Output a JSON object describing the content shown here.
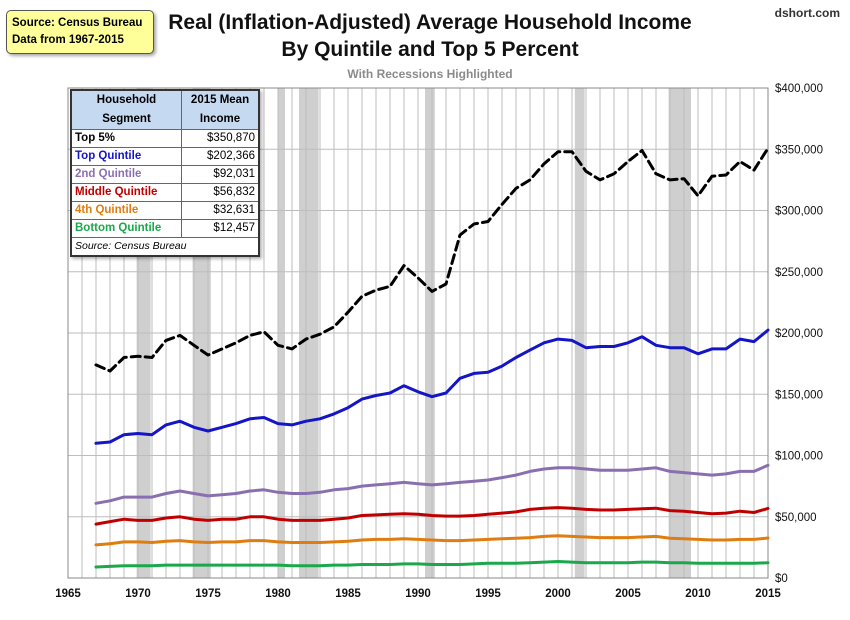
{
  "source_box": {
    "line1": "Source: Census Bureau",
    "line2": "Data from 1967-2015"
  },
  "brand": "dshort.com",
  "table": {
    "header_segment": [
      "Household",
      "Segment"
    ],
    "header_income": [
      "2015 Mean",
      "Income"
    ],
    "rows": [
      {
        "label": "Top 5%",
        "value": "$350,870",
        "color": "#000000"
      },
      {
        "label": "Top Quintile",
        "value": "$202,366",
        "color": "#1515c8"
      },
      {
        "label": "2nd Quintile",
        "value": "$92,031",
        "color": "#8a6fb0"
      },
      {
        "label": "Middle Quintile",
        "value": "$56,832",
        "color": "#c00000"
      },
      {
        "label": "4th Quintile",
        "value": "$32,631",
        "color": "#e07d10"
      },
      {
        "label": "Bottom Quintile",
        "value": "$12,457",
        "color": "#1aa84a"
      }
    ],
    "note": "Source: Census Bureau"
  },
  "chart_data": {
    "type": "line",
    "title": "Real (Inflation-Adjusted) Average Household Income",
    "title_line2": "By Quintile and Top 5 Percent",
    "subtitle": "With Recessions Highlighted",
    "xlim": [
      1965,
      2015
    ],
    "ylim": [
      0,
      400000
    ],
    "x_ticks": [
      1965,
      1970,
      1975,
      1980,
      1985,
      1990,
      1995,
      2000,
      2005,
      2010,
      2015
    ],
    "y_ticks": [
      0,
      50000,
      100000,
      150000,
      200000,
      250000,
      300000,
      350000,
      400000
    ],
    "y_tick_labels": [
      "$0",
      "$50,000",
      "$100,000",
      "$150,000",
      "$200,000",
      "$250,000",
      "$300,000",
      "$350,000",
      "$400,000"
    ],
    "grid": true,
    "recessions": [
      [
        1969.9,
        1970.9
      ],
      [
        1973.9,
        1975.2
      ],
      [
        1980.0,
        1980.5
      ],
      [
        1981.5,
        1982.9
      ],
      [
        1990.5,
        1991.2
      ],
      [
        2001.2,
        2001.9
      ],
      [
        2007.9,
        2009.5
      ]
    ],
    "x": [
      1967,
      1968,
      1969,
      1970,
      1971,
      1972,
      1973,
      1974,
      1975,
      1976,
      1977,
      1978,
      1979,
      1980,
      1981,
      1982,
      1983,
      1984,
      1985,
      1986,
      1987,
      1988,
      1989,
      1990,
      1991,
      1992,
      1993,
      1994,
      1995,
      1996,
      1997,
      1998,
      1999,
      2000,
      2001,
      2002,
      2003,
      2004,
      2005,
      2006,
      2007,
      2008,
      2009,
      2010,
      2011,
      2012,
      2013,
      2014,
      2015
    ],
    "series": [
      {
        "name": "Top 5%",
        "color": "#000000",
        "dashed": true,
        "values": [
          174000,
          169000,
          180000,
          181000,
          180000,
          194000,
          198000,
          190000,
          182000,
          187000,
          192000,
          198000,
          201000,
          190000,
          187000,
          195000,
          199000,
          205000,
          217000,
          230000,
          235000,
          238000,
          255000,
          245000,
          234000,
          240000,
          280000,
          289000,
          291000,
          305000,
          318000,
          325000,
          338000,
          348000,
          348000,
          332000,
          325000,
          330000,
          340000,
          349000,
          330000,
          325000,
          326000,
          312000,
          328000,
          329000,
          340000,
          333000,
          350870
        ]
      },
      {
        "name": "Top Quintile",
        "color": "#1515c8",
        "dashed": false,
        "values": [
          110000,
          111000,
          117000,
          118000,
          117000,
          125000,
          128000,
          123000,
          120000,
          123000,
          126000,
          130000,
          131000,
          126000,
          125000,
          128000,
          130000,
          134000,
          139000,
          146000,
          149000,
          151000,
          157000,
          152000,
          148000,
          151000,
          163000,
          167000,
          168000,
          173000,
          180000,
          186000,
          192000,
          195000,
          194000,
          188000,
          189000,
          189000,
          192000,
          197000,
          190000,
          188000,
          188000,
          183000,
          187000,
          187000,
          195000,
          193000,
          202366
        ]
      },
      {
        "name": "2nd Quintile",
        "color": "#8a6fb0",
        "dashed": false,
        "values": [
          61000,
          63000,
          66000,
          66000,
          66000,
          69000,
          71000,
          69000,
          67000,
          68000,
          69000,
          71000,
          72000,
          70000,
          69000,
          69000,
          70000,
          72000,
          73000,
          75000,
          76000,
          77000,
          78000,
          77000,
          76000,
          77000,
          78000,
          79000,
          80000,
          82000,
          84000,
          87000,
          89000,
          90000,
          90000,
          89000,
          88000,
          88000,
          88000,
          89000,
          90000,
          87000,
          86000,
          85000,
          84000,
          85000,
          87000,
          87000,
          92031
        ]
      },
      {
        "name": "Middle Quintile",
        "color": "#c00000",
        "dashed": false,
        "values": [
          44000,
          46000,
          48000,
          47000,
          47000,
          49000,
          50000,
          48000,
          47000,
          48000,
          48000,
          50000,
          50000,
          48000,
          47000,
          47000,
          47000,
          48000,
          49000,
          51000,
          51500,
          52000,
          52500,
          52000,
          51000,
          50500,
          50500,
          51000,
          52000,
          53000,
          54000,
          56000,
          57000,
          57500,
          57000,
          56000,
          55500,
          55500,
          56000,
          56500,
          57000,
          55000,
          54500,
          53500,
          52500,
          53000,
          54500,
          53500,
          56832
        ]
      },
      {
        "name": "4th Quintile",
        "color": "#e07d10",
        "dashed": false,
        "values": [
          27000,
          28000,
          29500,
          29500,
          29000,
          30000,
          30500,
          29500,
          29000,
          29500,
          29500,
          30500,
          30500,
          29500,
          29000,
          29000,
          29000,
          29500,
          30000,
          31000,
          31500,
          31500,
          32000,
          31500,
          31000,
          30500,
          30500,
          31000,
          31500,
          32000,
          32500,
          33000,
          34000,
          34500,
          34000,
          33500,
          33000,
          33000,
          33000,
          33500,
          34000,
          32500,
          32000,
          31500,
          31000,
          31000,
          31500,
          31500,
          32631
        ]
      },
      {
        "name": "Bottom Quintile",
        "color": "#1aa84a",
        "dashed": false,
        "values": [
          9000,
          9500,
          10000,
          10000,
          10000,
          10500,
          10500,
          10500,
          10500,
          10500,
          10500,
          10500,
          10500,
          10500,
          10000,
          10000,
          10000,
          10500,
          10500,
          11000,
          11000,
          11000,
          11500,
          11500,
          11000,
          11000,
          11000,
          11500,
          12000,
          12000,
          12000,
          12500,
          13000,
          13500,
          13000,
          12500,
          12500,
          12500,
          12500,
          13000,
          13000,
          12500,
          12500,
          12000,
          12000,
          12000,
          12000,
          12000,
          12457
        ]
      }
    ]
  }
}
